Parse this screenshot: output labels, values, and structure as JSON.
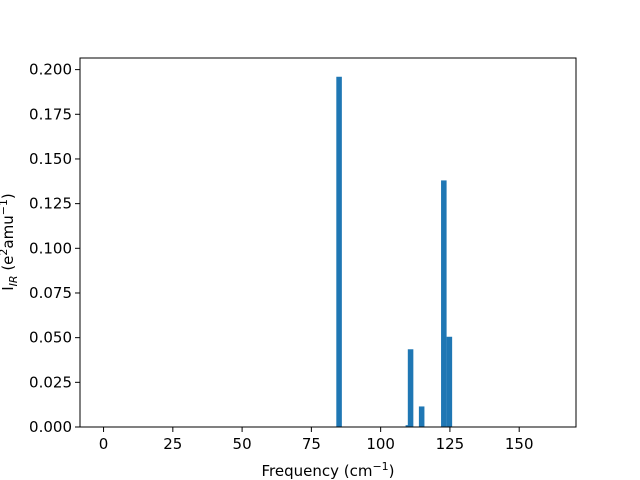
{
  "chart_data": {
    "type": "bar",
    "title": "",
    "xlabel": "Frequency (cm",
    "xlabel_sup": "−1",
    "xlabel_end": ")",
    "ylabel": "I",
    "ylabel_sub": "IR",
    "ylabel_rest": " (e",
    "ylabel_sup1": "2",
    "ylabel_mid": "amu",
    "ylabel_sup2": "−1",
    "ylabel_end": ")",
    "xlim": [
      -8.5,
      170.5
    ],
    "ylim": [
      0,
      0.2065
    ],
    "xticks": [
      0,
      25,
      50,
      75,
      100,
      125,
      150
    ],
    "xtick_labels": [
      "0",
      "25",
      "50",
      "75",
      "100",
      "125",
      "150"
    ],
    "yticks": [
      0,
      0.025,
      0.05,
      0.075,
      0.1,
      0.125,
      0.15,
      0.175,
      0.2
    ],
    "ytick_labels": [
      "0.000",
      "0.025",
      "0.050",
      "0.075",
      "0.100",
      "0.125",
      "0.150",
      "0.175",
      "0.200"
    ],
    "bar_width": 2,
    "bar_color": "#1f77b4",
    "grid": false,
    "series": [
      {
        "x": [
          0.3,
          85.0,
          110.0,
          110.8,
          114.8,
          122.8,
          124.8,
          163.0
        ],
        "values": [
          0.0,
          0.196,
          0.001,
          0.0435,
          0.0115,
          0.138,
          0.0505,
          0.0
        ]
      }
    ]
  }
}
